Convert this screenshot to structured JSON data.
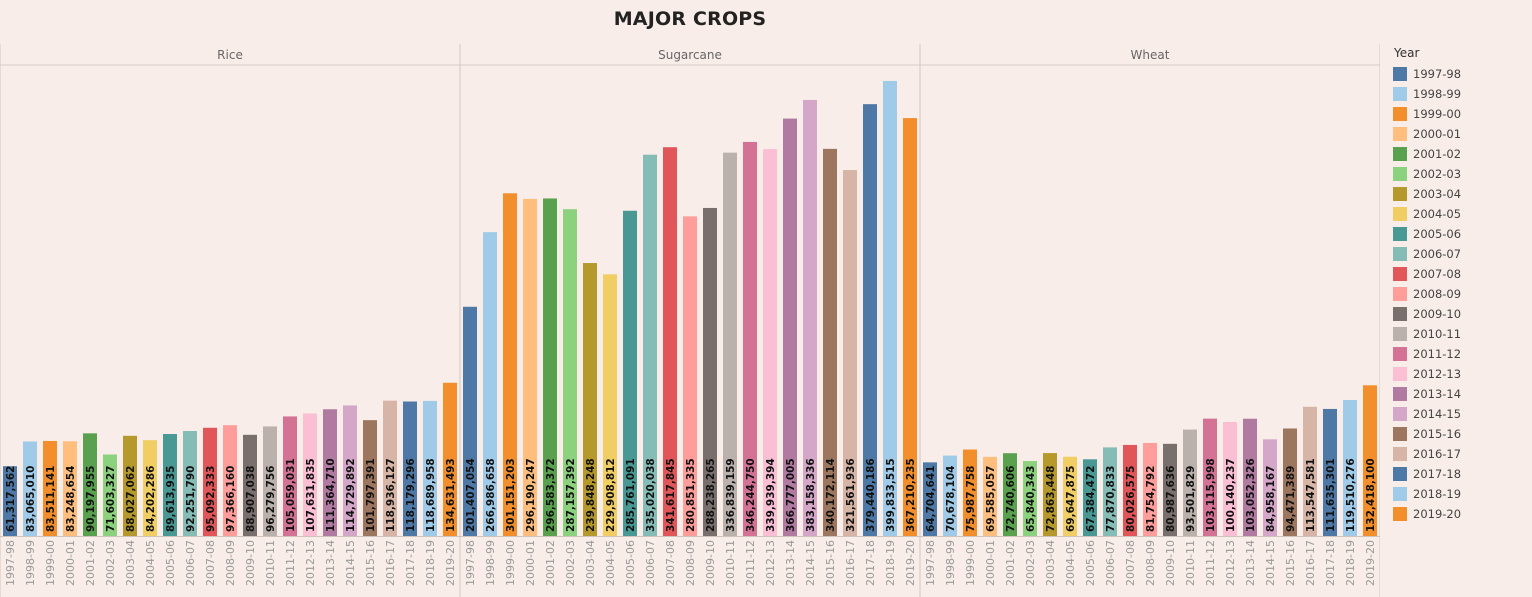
{
  "colors": [
    "#4e79a7",
    "#a0cbe8",
    "#f28e2b",
    "#ffbe7d",
    "#59a14f",
    "#8cd17d",
    "#b6992d",
    "#f1ce63",
    "#499894",
    "#86bcb6",
    "#e15759",
    "#ff9d9a",
    "#79706e",
    "#bab0ac",
    "#d37295",
    "#fabfd2",
    "#b07aa1",
    "#d4a6c8",
    "#9d7660",
    "#d7b5a6",
    "#4e79a7",
    "#a0cbe8",
    "#f28e2b"
  ],
  "chart_data": {
    "type": "bar",
    "title": "MAJOR CROPS",
    "legend_title": "Year",
    "legend_position": "right",
    "grid": false,
    "ylim": [
      0,
      420000000
    ],
    "categories": [
      "1997-98",
      "1998-99",
      "1999-00",
      "2000-01",
      "2001-02",
      "2002-03",
      "2003-04",
      "2004-05",
      "2005-06",
      "2006-07",
      "2007-08",
      "2008-09",
      "2009-10",
      "2010-11",
      "2011-12",
      "2012-13",
      "2013-14",
      "2014-15",
      "2015-16",
      "2016-17",
      "2017-18",
      "2018-19",
      "2019-20"
    ],
    "panels": [
      {
        "name": "Rice",
        "values": [
          61317562,
          83065010,
          83511141,
          83248654,
          90197955,
          71603327,
          88027062,
          84202286,
          89613935,
          92251790,
          95092333,
          97366160,
          88907038,
          96279756,
          105059031,
          107631835,
          111364710,
          114729892,
          101797391,
          118936127,
          118179296,
          118689958,
          134631493
        ]
      },
      {
        "name": "Sugarcane",
        "values": [
          201407054,
          266986658,
          301151203,
          296190247,
          296583372,
          287157392,
          239848248,
          229908812,
          285761091,
          335020038,
          341617845,
          280851335,
          288238265,
          336839159,
          346244750,
          339939394,
          366777005,
          383158336,
          340172114,
          321561936,
          379440186,
          399833515,
          367210235
        ]
      },
      {
        "name": "Wheat",
        "values": [
          64704641,
          70678104,
          75987758,
          69585057,
          72740606,
          65840343,
          72863448,
          69647875,
          67384472,
          77870833,
          80026575,
          81754792,
          80987636,
          93501829,
          103115998,
          100140237,
          103052326,
          84958167,
          94471389,
          113547581,
          111635301,
          119510276,
          132418100
        ]
      }
    ]
  }
}
